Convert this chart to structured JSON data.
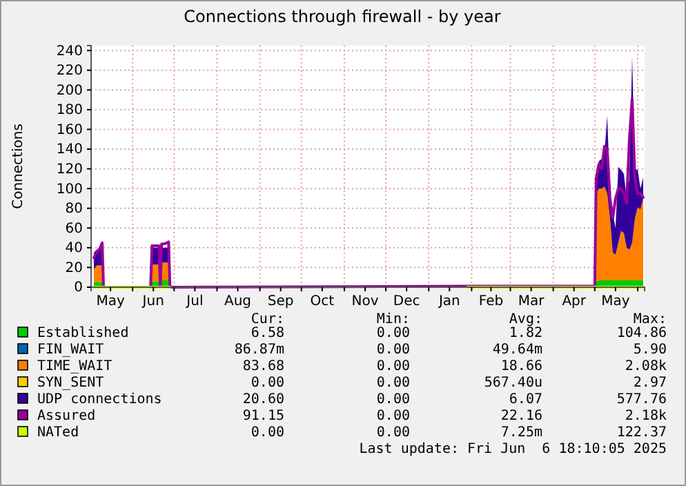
{
  "chart_data": {
    "type": "area",
    "title": "Connections through firewall - by year",
    "ylabel": "Connections",
    "x": [
      "2024-05-04",
      "2024-05-06",
      "2024-05-08",
      "2024-05-10",
      "2024-05-11",
      "2024-06-14",
      "2024-06-15",
      "2024-06-17",
      "2024-06-19",
      "2024-06-20",
      "2024-06-21",
      "2024-06-22",
      "2024-06-24",
      "2024-06-26",
      "2024-06-27",
      "2024-06-28",
      "2024-07-01",
      "2025-01-29",
      "2025-03-01",
      "2025-04-01",
      "2025-05-01",
      "2025-05-02",
      "2025-05-04",
      "2025-05-06",
      "2025-05-08",
      "2025-05-10",
      "2025-05-12",
      "2025-05-14",
      "2025-05-16",
      "2025-05-18",
      "2025-05-20",
      "2025-05-22",
      "2025-05-24",
      "2025-05-26",
      "2025-05-28",
      "2025-05-30",
      "2025-06-01",
      "2025-06-03",
      "2025-06-05"
    ],
    "stacked": true,
    "series": [
      {
        "name": "Established",
        "color": "#00cc00",
        "values": [
          5,
          5,
          5,
          5,
          0,
          0,
          6,
          6,
          6,
          6,
          0,
          7,
          7,
          7,
          7,
          0,
          null,
          0,
          0,
          0,
          0,
          6,
          7,
          7,
          7,
          7,
          7,
          7,
          7,
          7,
          7,
          7,
          7,
          7,
          7,
          7,
          7,
          7,
          7
        ]
      },
      {
        "name": "FIN_WAIT",
        "color": "#0066b3",
        "values": [
          null,
          null,
          null,
          null,
          null,
          null,
          null,
          null,
          null,
          null,
          null,
          null,
          null,
          null,
          null,
          null,
          null,
          null,
          null,
          null,
          null,
          null,
          null,
          null,
          null,
          null,
          null,
          null,
          null,
          null,
          null,
          null,
          null,
          null,
          null,
          null,
          null,
          null,
          null
        ]
      },
      {
        "name": "TIME_WAIT",
        "color": "#ff8000",
        "values": [
          13,
          17,
          17,
          17,
          0,
          0,
          17,
          17,
          17,
          17,
          0,
          18,
          18,
          18,
          18,
          0,
          null,
          0,
          0,
          0,
          0,
          89,
          93,
          93,
          95,
          88,
          63,
          28,
          26,
          38,
          50,
          48,
          33,
          31,
          38,
          63,
          74,
          72,
          83
        ]
      },
      {
        "name": "SYN_SENT",
        "color": "#ffcc00",
        "values": [
          null,
          null,
          null,
          null,
          null,
          null,
          null,
          null,
          null,
          null,
          null,
          null,
          null,
          null,
          null,
          null,
          null,
          null,
          null,
          null,
          null,
          null,
          null,
          null,
          null,
          null,
          null,
          null,
          null,
          null,
          null,
          null,
          null,
          null,
          null,
          null,
          null,
          null,
          null
        ]
      },
      {
        "name": "UDP connections",
        "color": "#330099",
        "values": [
          17,
          16,
          18,
          25,
          0,
          0,
          17,
          17,
          17,
          17,
          0,
          15,
          15,
          15,
          15,
          0,
          null,
          0,
          0,
          0,
          0,
          15,
          28,
          30,
          33,
          79,
          25,
          40,
          27,
          77,
          62,
          60,
          50,
          72,
          189,
          50,
          38,
          21,
          21
        ]
      },
      {
        "name": "Assured",
        "color": "#990099",
        "type": "line",
        "values": [
          30,
          35,
          38,
          45,
          0,
          0,
          42,
          42,
          42,
          42,
          0,
          44,
          44,
          45,
          46,
          0,
          0,
          1,
          1,
          1,
          1,
          110,
          125,
          120,
          143,
          140,
          90,
          70,
          90,
          100,
          100,
          95,
          85,
          150,
          191,
          110,
          95,
          95,
          91
        ]
      },
      {
        "name": "NATed",
        "color": "#ccff00",
        "type": "line",
        "values": [
          0,
          0,
          0,
          0,
          0,
          0,
          0,
          0,
          0,
          0,
          0,
          0,
          0,
          0,
          0,
          0,
          null,
          0,
          0,
          0,
          0,
          0,
          0,
          0,
          0,
          0,
          0,
          0,
          0,
          0,
          0,
          0,
          0,
          0,
          0,
          0,
          0,
          0,
          0
        ]
      }
    ],
    "xlim": [
      "2024-05-02",
      "2025-06-06"
    ],
    "xticks": [
      {
        "value": "2024-05-16",
        "label": "May"
      },
      {
        "value": "2024-06-01",
        "label": null
      },
      {
        "value": "2024-06-16",
        "label": "Jun"
      },
      {
        "value": "2024-07-01",
        "label": null
      },
      {
        "value": "2024-07-16",
        "label": "Jul"
      },
      {
        "value": "2024-08-01",
        "label": null
      },
      {
        "value": "2024-08-16",
        "label": "Aug"
      },
      {
        "value": "2024-09-01",
        "label": null
      },
      {
        "value": "2024-09-16",
        "label": "Sep"
      },
      {
        "value": "2024-10-01",
        "label": null
      },
      {
        "value": "2024-10-16",
        "label": "Oct"
      },
      {
        "value": "2024-11-01",
        "label": null
      },
      {
        "value": "2024-11-16",
        "label": "Nov"
      },
      {
        "value": "2024-12-01",
        "label": null
      },
      {
        "value": "2024-12-16",
        "label": "Dec"
      },
      {
        "value": "2025-01-01",
        "label": null
      },
      {
        "value": "2025-01-16",
        "label": "Jan"
      },
      {
        "value": "2025-02-01",
        "label": null
      },
      {
        "value": "2025-02-15",
        "label": "Feb"
      },
      {
        "value": "2025-03-01",
        "label": null
      },
      {
        "value": "2025-03-16",
        "label": "Mar"
      },
      {
        "value": "2025-04-01",
        "label": null
      },
      {
        "value": "2025-04-16",
        "label": "Apr"
      },
      {
        "value": "2025-05-01",
        "label": null
      },
      {
        "value": "2025-05-16",
        "label": "May"
      },
      {
        "value": "2025-06-01",
        "label": null
      }
    ],
    "ylim": [
      0,
      245
    ],
    "yticks": [
      0,
      20,
      40,
      60,
      80,
      100,
      120,
      140,
      160,
      180,
      200,
      220,
      240
    ],
    "grid": true,
    "legend": "bottom",
    "annotations": [
      "Cur:",
      "Min:",
      "Avg:",
      "Max:",
      "6.58",
      "0.00",
      "1.82",
      "104.86",
      "86.87m",
      "0.00",
      "49.64m",
      "5.90",
      "83.68",
      "0.00",
      "18.66",
      "2.08k",
      "0.00",
      "0.00",
      "567.40u",
      "2.97",
      "20.60",
      "0.00",
      "6.07",
      "577.76",
      "91.15",
      "0.00",
      "22.16",
      "2.18k",
      "0.00",
      "0.00",
      "7.25m",
      "122.37",
      "Last update: Fri Jun  6 18:10:05 2025"
    ]
  }
}
